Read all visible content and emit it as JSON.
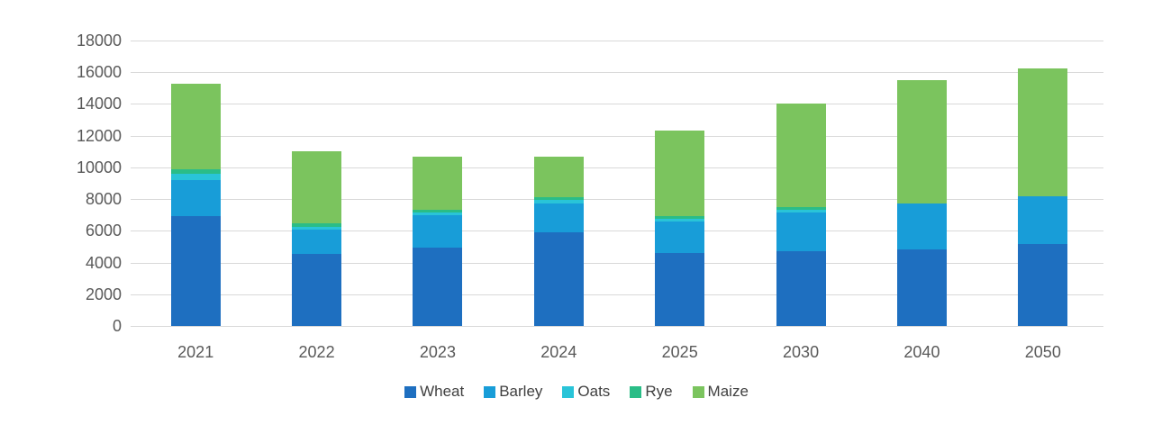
{
  "chart_data": {
    "type": "bar",
    "variant": "stacked-vertical",
    "title": "",
    "categories": [
      "2021",
      "2022",
      "2023",
      "2024",
      "2025",
      "2030",
      "2040",
      "2050"
    ],
    "series": [
      {
        "name": "Wheat",
        "color": "#1E6FC0",
        "values": [
          6900,
          4550,
          4950,
          5900,
          4600,
          4700,
          4800,
          5150
        ]
      },
      {
        "name": "Barley",
        "color": "#189DD8",
        "values": [
          2300,
          1500,
          2050,
          1850,
          2000,
          2450,
          2900,
          3000
        ]
      },
      {
        "name": "Oats",
        "color": "#29C4D8",
        "values": [
          400,
          200,
          150,
          200,
          150,
          200,
          0,
          0
        ]
      },
      {
        "name": "Rye",
        "color": "#2ABD87",
        "values": [
          300,
          250,
          200,
          150,
          200,
          150,
          0,
          0
        ]
      },
      {
        "name": "Maize",
        "color": "#7BC45E",
        "values": [
          5400,
          4500,
          3300,
          2550,
          5350,
          6500,
          7800,
          8100
        ]
      }
    ],
    "totals": [
      15300,
      11000,
      10650,
      10650,
      12300,
      14000,
      15500,
      16250
    ],
    "xlabel": "",
    "ylabel": "",
    "y_axis": {
      "min": 0,
      "max": 18000,
      "step": 2000,
      "tick_labels": [
        "0",
        "2000",
        "4000",
        "6000",
        "8000",
        "10000",
        "12000",
        "14000",
        "16000",
        "18000"
      ]
    },
    "legend": {
      "position": "bottom",
      "entries": [
        "Wheat",
        "Barley",
        "Oats",
        "Rye",
        "Maize"
      ]
    },
    "grid": true,
    "colors": {
      "background": "#FFFFFF",
      "gridline": "#D9D9D9",
      "axis_text": "#595959",
      "legend_text": "#404040"
    }
  }
}
